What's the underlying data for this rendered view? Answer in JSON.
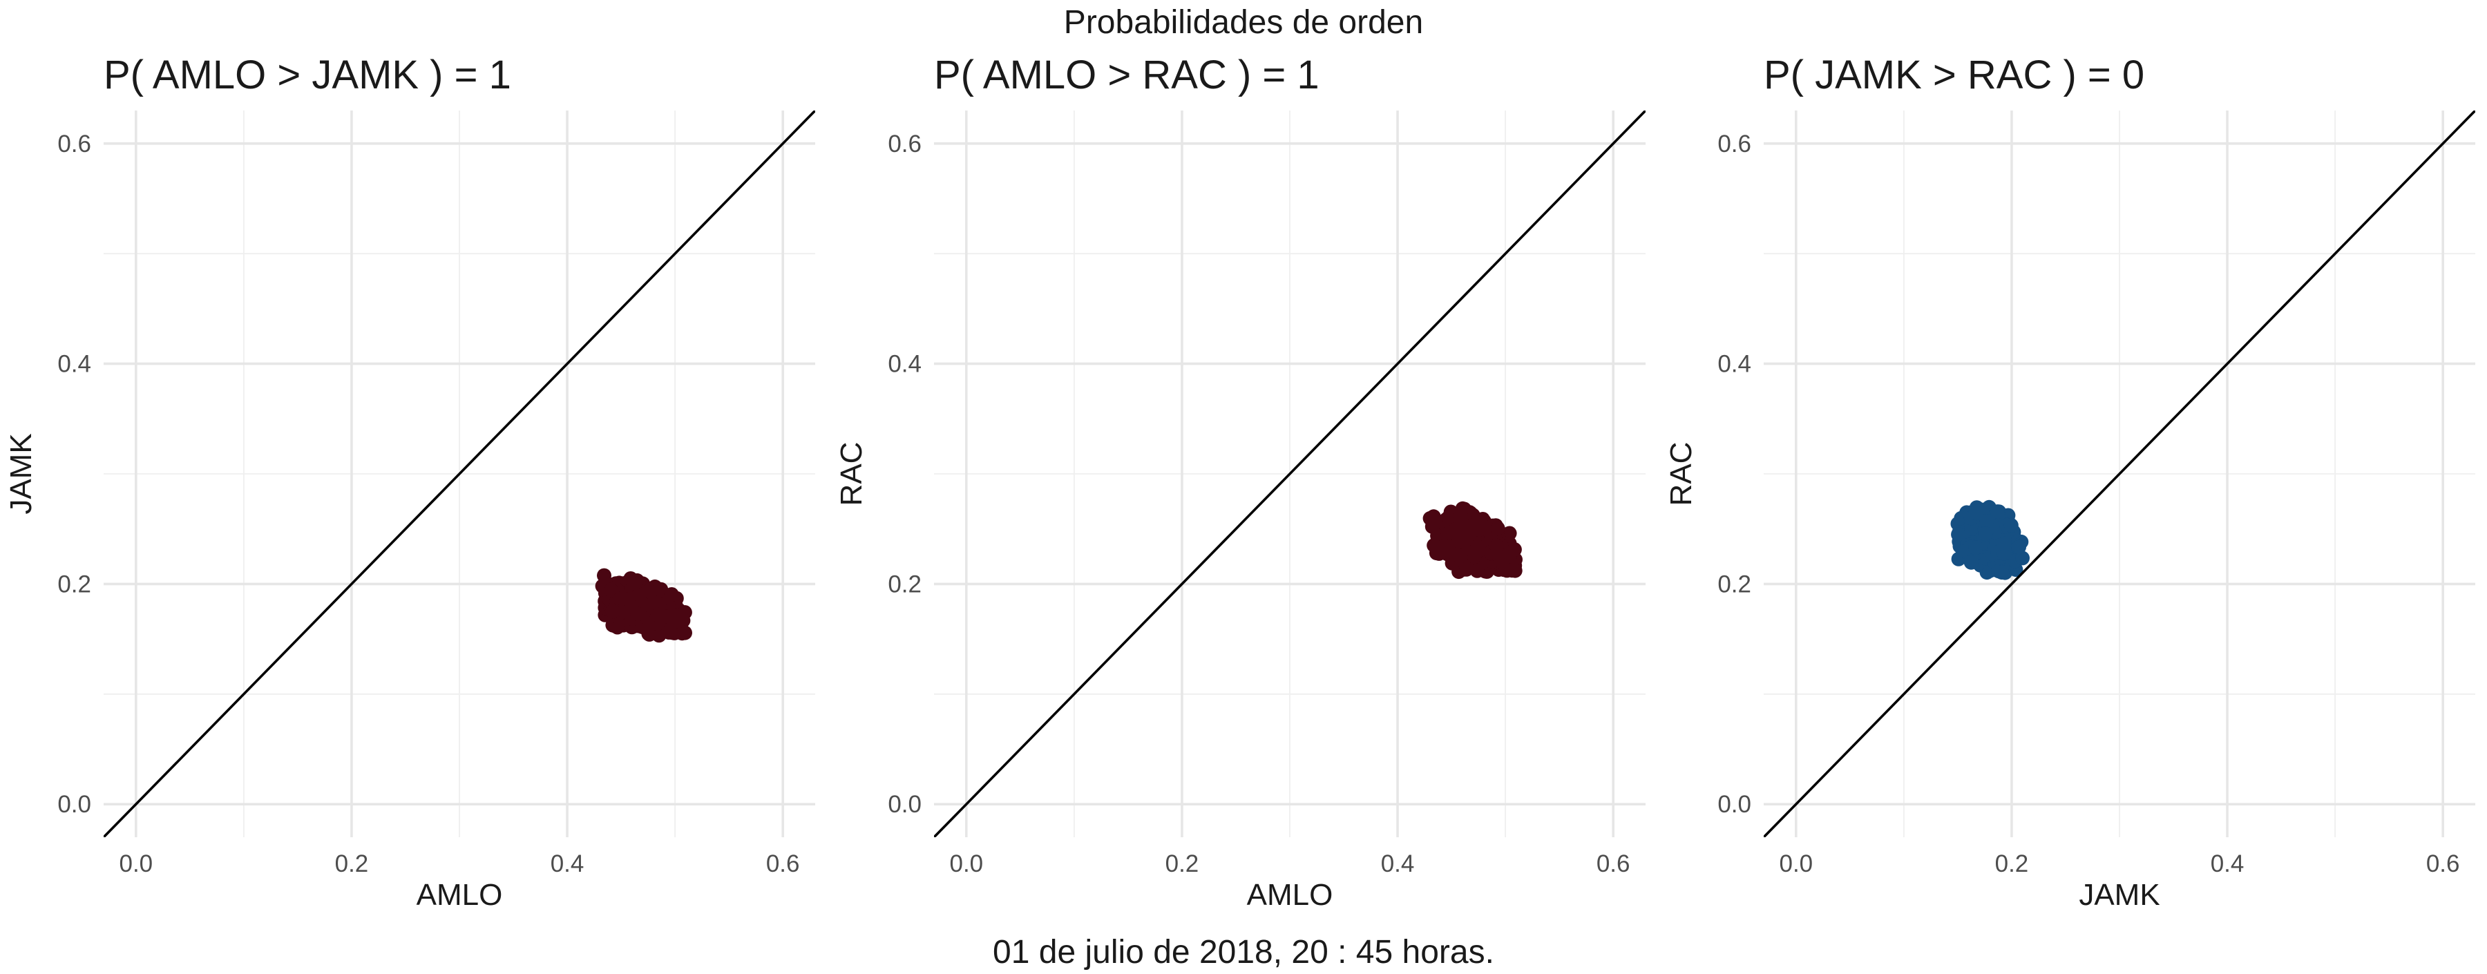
{
  "title": "Probabilidades de orden",
  "caption": "01 de julio de 2018, 20 : 45 horas.",
  "colors": {
    "AMLO": "#4a0612",
    "JAMK": "#154f82",
    "reference_line": "#000000"
  },
  "chart_data": [
    {
      "type": "scatter",
      "title": "P( AMLO > JAMK ) = 1",
      "xlabel": "AMLO",
      "ylabel": "JAMK",
      "xlim": [
        -0.03,
        0.63
      ],
      "ylim": [
        -0.03,
        0.63
      ],
      "x_ticks": [
        "0.0",
        "0.2",
        "0.4",
        "0.6"
      ],
      "y_ticks": [
        "0.0",
        "0.2",
        "0.4",
        "0.6"
      ],
      "reference_line": "y = x",
      "color_key": "AMLO",
      "cloud": {
        "x_center": 0.47,
        "y_center": 0.178,
        "x_spread": 0.016,
        "y_spread": 0.011,
        "x_range": [
          0.43,
          0.51
        ],
        "y_range": [
          0.15,
          0.21
        ],
        "tilt": -0.45,
        "n": 650
      }
    },
    {
      "type": "scatter",
      "title": "P( AMLO > RAC ) = 1",
      "xlabel": "AMLO",
      "ylabel": "RAC",
      "xlim": [
        -0.03,
        0.63
      ],
      "ylim": [
        -0.03,
        0.63
      ],
      "x_ticks": [
        "0.0",
        "0.2",
        "0.4",
        "0.6"
      ],
      "y_ticks": [
        "0.0",
        "0.2",
        "0.4",
        "0.6"
      ],
      "reference_line": "y = x",
      "color_key": "AMLO",
      "cloud": {
        "x_center": 0.47,
        "y_center": 0.237,
        "x_spread": 0.017,
        "y_spread": 0.012,
        "x_range": [
          0.43,
          0.51
        ],
        "y_range": [
          0.21,
          0.27
        ],
        "tilt": -0.45,
        "n": 650
      }
    },
    {
      "type": "scatter",
      "title": "P( JAMK > RAC ) = 0",
      "xlabel": "JAMK",
      "ylabel": "RAC",
      "xlim": [
        -0.03,
        0.63
      ],
      "ylim": [
        -0.03,
        0.63
      ],
      "x_ticks": [
        "0.0",
        "0.2",
        "0.4",
        "0.6"
      ],
      "y_ticks": [
        "0.0",
        "0.2",
        "0.4",
        "0.6"
      ],
      "reference_line": "y = x",
      "color_key": "JAMK",
      "cloud": {
        "x_center": 0.18,
        "y_center": 0.237,
        "x_spread": 0.011,
        "y_spread": 0.012,
        "x_range": [
          0.15,
          0.21
        ],
        "y_range": [
          0.21,
          0.27
        ],
        "tilt": -0.35,
        "n": 650
      }
    }
  ]
}
